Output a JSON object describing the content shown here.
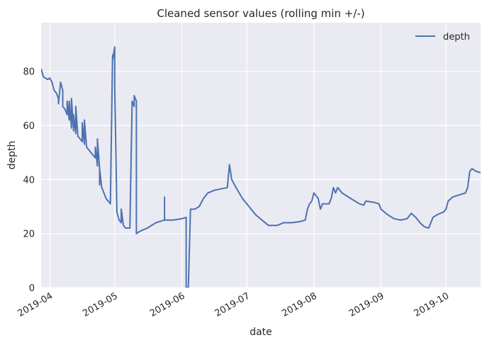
{
  "chart_data": {
    "type": "line",
    "title": "Cleaned sensor values (rolling min +/-)",
    "xlabel": "date",
    "ylabel": "depth",
    "xlim": [
      "2019-03-28",
      "2019-10-17"
    ],
    "ylim": [
      0,
      98
    ],
    "x_ticks": [
      "2019-04",
      "2019-05",
      "2019-06",
      "2019-07",
      "2019-08",
      "2019-09",
      "2019-10"
    ],
    "y_ticks": [
      0,
      20,
      40,
      60,
      80
    ],
    "grid": true,
    "legend": {
      "position": "top-right",
      "entries": [
        "depth"
      ]
    },
    "colors": {
      "series": "#4c72b0",
      "plot_bg": "#eaeaf2",
      "grid": "#ffffff"
    },
    "series": [
      {
        "name": "depth",
        "points": [
          [
            "2019-03-28",
            81
          ],
          [
            "2019-03-29",
            78
          ],
          [
            "2019-03-31",
            77
          ],
          [
            "2019-04-01",
            77.5
          ],
          [
            "2019-04-02",
            76
          ],
          [
            "2019-04-03",
            73
          ],
          [
            "2019-04-04",
            72
          ],
          [
            "2019-04-05",
            70
          ],
          [
            "2019-04-05",
            68
          ],
          [
            "2019-04-06",
            76
          ],
          [
            "2019-04-07",
            73
          ],
          [
            "2019-04-07",
            67
          ],
          [
            "2019-04-08",
            66
          ],
          [
            "2019-04-09",
            64
          ],
          [
            "2019-04-09",
            69
          ],
          [
            "2019-04-10",
            62
          ],
          [
            "2019-04-10",
            69
          ],
          [
            "2019-04-11",
            59
          ],
          [
            "2019-04-11",
            70
          ],
          [
            "2019-04-12",
            58
          ],
          [
            "2019-04-12",
            64
          ],
          [
            "2019-04-13",
            57
          ],
          [
            "2019-04-13",
            67
          ],
          [
            "2019-04-14",
            56
          ],
          [
            "2019-04-15",
            55
          ],
          [
            "2019-04-16",
            54
          ],
          [
            "2019-04-16",
            61
          ],
          [
            "2019-04-17",
            53
          ],
          [
            "2019-04-17",
            62
          ],
          [
            "2019-04-18",
            52
          ],
          [
            "2019-04-20",
            50
          ],
          [
            "2019-04-22",
            48
          ],
          [
            "2019-04-22",
            52
          ],
          [
            "2019-04-23",
            45
          ],
          [
            "2019-04-23",
            55
          ],
          [
            "2019-04-24",
            44
          ],
          [
            "2019-04-24",
            38
          ],
          [
            "2019-04-24",
            44
          ],
          [
            "2019-04-25",
            37
          ],
          [
            "2019-04-26",
            35
          ],
          [
            "2019-04-27",
            33
          ],
          [
            "2019-04-29",
            31
          ],
          [
            "2019-04-29",
            31
          ],
          [
            "2019-04-30",
            86
          ],
          [
            "2019-04-30",
            84
          ],
          [
            "2019-05-01",
            89
          ],
          [
            "2019-05-01",
            75
          ],
          [
            "2019-05-02",
            28
          ],
          [
            "2019-05-03",
            25
          ],
          [
            "2019-05-04",
            24
          ],
          [
            "2019-05-04",
            29
          ],
          [
            "2019-05-05",
            23
          ],
          [
            "2019-05-06",
            22
          ],
          [
            "2019-05-08",
            22
          ],
          [
            "2019-05-09",
            67
          ],
          [
            "2019-05-09",
            69
          ],
          [
            "2019-05-10",
            67
          ],
          [
            "2019-05-10",
            71
          ],
          [
            "2019-05-11",
            69
          ],
          [
            "2019-05-11",
            20
          ],
          [
            "2019-05-13",
            21
          ],
          [
            "2019-05-16",
            22
          ],
          [
            "2019-05-20",
            24
          ],
          [
            "2019-05-24",
            25
          ],
          [
            "2019-05-24",
            33.5
          ],
          [
            "2019-05-24",
            25
          ],
          [
            "2019-05-28",
            25
          ],
          [
            "2019-06-01",
            25.5
          ],
          [
            "2019-06-03",
            26
          ],
          [
            "2019-06-03",
            0
          ],
          [
            "2019-06-04",
            0
          ],
          [
            "2019-06-05",
            29
          ],
          [
            "2019-06-07",
            29
          ],
          [
            "2019-06-09",
            30
          ],
          [
            "2019-06-11",
            33
          ],
          [
            "2019-06-13",
            35
          ],
          [
            "2019-06-16",
            36
          ],
          [
            "2019-06-19",
            36.5
          ],
          [
            "2019-06-22",
            37
          ],
          [
            "2019-06-23",
            45.5
          ],
          [
            "2019-06-24",
            40
          ],
          [
            "2019-06-26",
            37
          ],
          [
            "2019-06-29",
            33
          ],
          [
            "2019-07-02",
            30
          ],
          [
            "2019-07-05",
            27
          ],
          [
            "2019-07-08",
            25
          ],
          [
            "2019-07-11",
            23
          ],
          [
            "2019-07-15",
            23
          ],
          [
            "2019-07-18",
            24
          ],
          [
            "2019-07-22",
            24
          ],
          [
            "2019-07-26",
            24.5
          ],
          [
            "2019-07-28",
            25
          ],
          [
            "2019-07-29",
            29
          ],
          [
            "2019-07-30",
            31
          ],
          [
            "2019-07-31",
            32
          ],
          [
            "2019-08-01",
            35
          ],
          [
            "2019-08-03",
            33
          ],
          [
            "2019-08-04",
            29
          ],
          [
            "2019-08-05",
            31
          ],
          [
            "2019-08-08",
            31
          ],
          [
            "2019-08-09",
            33
          ],
          [
            "2019-08-10",
            37
          ],
          [
            "2019-08-11",
            35
          ],
          [
            "2019-08-12",
            37
          ],
          [
            "2019-08-14",
            35
          ],
          [
            "2019-08-18",
            33
          ],
          [
            "2019-08-22",
            31
          ],
          [
            "2019-08-24",
            30.5
          ],
          [
            "2019-08-25",
            32
          ],
          [
            "2019-08-29",
            31.5
          ],
          [
            "2019-08-31",
            31
          ],
          [
            "2019-09-01",
            29
          ],
          [
            "2019-09-04",
            27
          ],
          [
            "2019-09-07",
            25.5
          ],
          [
            "2019-09-10",
            25
          ],
          [
            "2019-09-13",
            25.5
          ],
          [
            "2019-09-15",
            27.5
          ],
          [
            "2019-09-17",
            26
          ],
          [
            "2019-09-19",
            24
          ],
          [
            "2019-09-21",
            22.5
          ],
          [
            "2019-09-23",
            22
          ],
          [
            "2019-09-24",
            24
          ],
          [
            "2019-09-25",
            26
          ],
          [
            "2019-09-27",
            27
          ],
          [
            "2019-09-30",
            28
          ],
          [
            "2019-10-01",
            29
          ],
          [
            "2019-10-02",
            32
          ],
          [
            "2019-10-04",
            33.5
          ],
          [
            "2019-10-06",
            34
          ],
          [
            "2019-10-08",
            34.5
          ],
          [
            "2019-10-10",
            35
          ],
          [
            "2019-10-11",
            37
          ],
          [
            "2019-10-12",
            43
          ],
          [
            "2019-10-13",
            44
          ],
          [
            "2019-10-15",
            43
          ],
          [
            "2019-10-17",
            42.5
          ]
        ]
      }
    ]
  }
}
